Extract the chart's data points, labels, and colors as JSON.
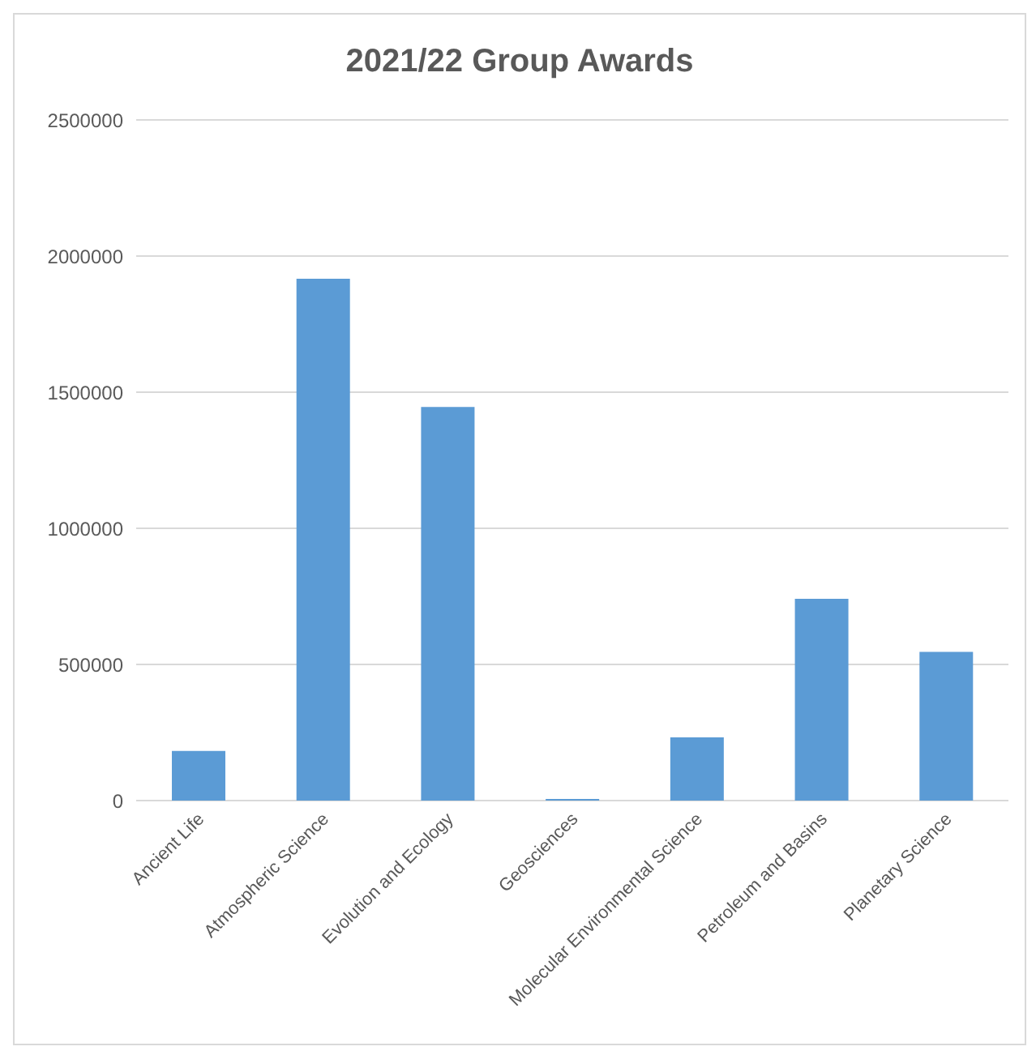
{
  "chart_data": {
    "type": "bar",
    "title": "2021/22 Group Awards",
    "categories": [
      "Ancient Life",
      "Atmospheric Science",
      "Evolution and Ecology",
      "Geosciences",
      "Molecular Environmental Science",
      "Petroleum and Basins",
      "Planetary Science"
    ],
    "values": [
      182000,
      1917000,
      1446000,
      6000,
      232000,
      741000,
      546000
    ],
    "color": "#5b9bd5",
    "ylim": [
      0,
      2500000
    ],
    "yticks": [
      0,
      500000,
      1000000,
      1500000,
      2000000,
      2500000
    ],
    "grid": "y"
  }
}
